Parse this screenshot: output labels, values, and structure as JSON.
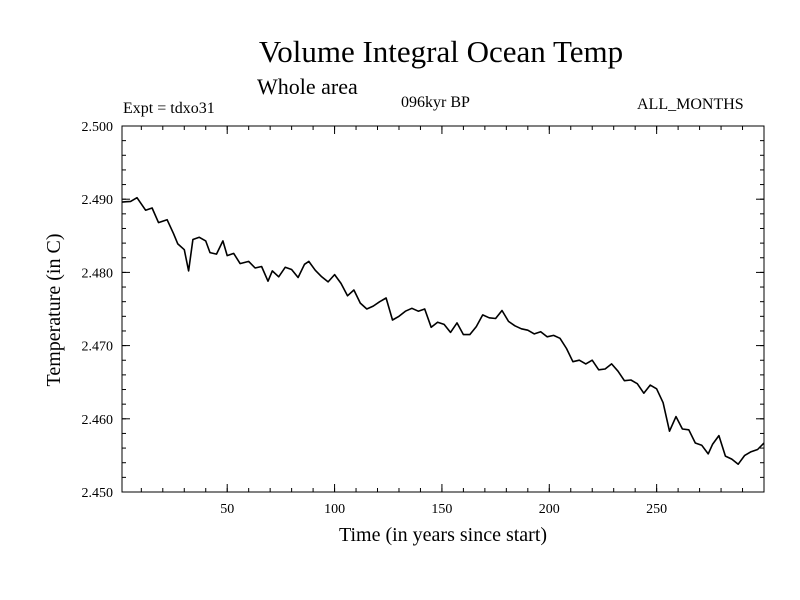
{
  "chart_data": {
    "type": "line",
    "title": "Volume Integral Ocean Temp",
    "subtitle": "Whole area",
    "annotations": {
      "left": "Expt = tdxo31",
      "center": "096kyr BP",
      "right": "ALL_MONTHS"
    },
    "xlabel": "Time (in years since start)",
    "ylabel": "Temperature (in C)",
    "xlim": [
      1,
      300
    ],
    "ylim": [
      2.45,
      2.5
    ],
    "x_ticks": [
      50,
      100,
      150,
      200,
      250
    ],
    "x_tick_labels": [
      "50",
      "100",
      "150",
      "200",
      "250"
    ],
    "y_ticks": [
      2.45,
      2.46,
      2.47,
      2.48,
      2.49,
      2.5
    ],
    "y_tick_labels": [
      "2.450",
      "2.460",
      "2.470",
      "2.480",
      "2.490",
      "2.500"
    ],
    "grid": false,
    "series": [
      {
        "name": "Volume Integral Ocean Temp",
        "x": [
          1,
          5,
          8,
          12,
          15,
          18,
          22,
          25,
          27,
          30,
          32,
          34,
          37,
          40,
          42,
          45,
          48,
          50,
          53,
          56,
          60,
          63,
          66,
          69,
          71,
          74,
          77,
          80,
          83,
          86,
          88,
          91,
          94,
          97,
          100,
          103,
          106,
          109,
          112,
          115,
          118,
          121,
          124,
          127,
          130,
          133,
          136,
          139,
          142,
          145,
          148,
          151,
          154,
          157,
          160,
          163,
          166,
          169,
          172,
          175,
          178,
          181,
          184,
          187,
          190,
          193,
          196,
          199,
          202,
          205,
          208,
          211,
          214,
          217,
          220,
          223,
          226,
          229,
          232,
          235,
          238,
          241,
          244,
          247,
          250,
          253,
          256,
          259,
          262,
          265,
          268,
          271,
          274,
          276,
          279,
          282,
          285,
          288,
          291,
          294,
          297,
          300
        ],
        "values": [
          2.4896,
          2.4897,
          2.4902,
          2.4885,
          2.4888,
          2.4868,
          2.4872,
          2.4853,
          2.4839,
          2.4831,
          2.4802,
          2.4845,
          2.4848,
          2.4843,
          2.4827,
          2.4825,
          2.4843,
          2.4823,
          2.4826,
          2.4812,
          2.4815,
          2.4806,
          2.4808,
          2.4788,
          2.4802,
          2.4794,
          2.4807,
          2.4804,
          2.4793,
          2.4811,
          2.4815,
          2.4803,
          2.4794,
          2.4787,
          2.4797,
          2.4785,
          2.4768,
          2.4776,
          2.4758,
          2.475,
          2.4754,
          2.476,
          2.4765,
          2.4735,
          2.474,
          2.4747,
          2.4751,
          2.4747,
          2.475,
          2.4725,
          2.4732,
          2.4729,
          2.4718,
          2.4731,
          2.4715,
          2.4715,
          2.4726,
          2.4742,
          2.4738,
          2.4737,
          2.4748,
          2.4733,
          2.4727,
          2.4723,
          2.4721,
          2.4716,
          2.4719,
          2.4712,
          2.4714,
          2.471,
          2.4696,
          2.4678,
          2.468,
          2.4675,
          2.468,
          2.4667,
          2.4668,
          2.4675,
          2.4665,
          2.4652,
          2.4653,
          2.4648,
          2.4635,
          2.4646,
          2.4641,
          2.4622,
          2.4583,
          2.4603,
          2.4586,
          2.4585,
          2.4567,
          2.4564,
          2.4552,
          2.4565,
          2.4577,
          2.4549,
          2.4545,
          2.4538,
          2.455,
          2.4555,
          2.4558,
          2.4567
        ]
      }
    ]
  }
}
